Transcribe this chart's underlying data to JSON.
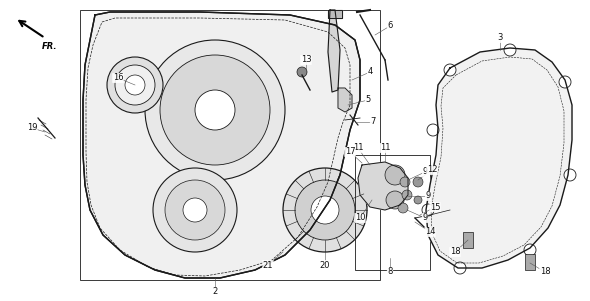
{
  "bg": "white",
  "lc": "#1a1a1a",
  "lc2": "#444444",
  "fig_w": 5.9,
  "fig_h": 3.01,
  "dpi": 100
}
